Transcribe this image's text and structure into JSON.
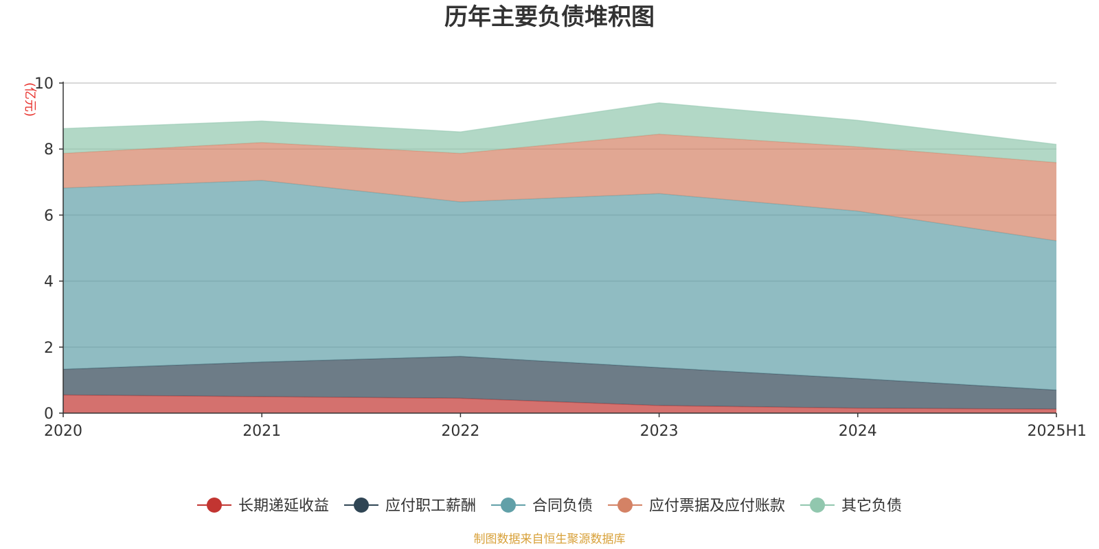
{
  "chart_data": {
    "type": "area",
    "stacked": true,
    "title": "历年主要负债堆积图",
    "unit_label": "(亿元)",
    "x": [
      "2020",
      "2021",
      "2022",
      "2023",
      "2024",
      "2025H1"
    ],
    "ylim": [
      0,
      10
    ],
    "yticks": [
      0,
      2,
      4,
      6,
      8,
      10
    ],
    "grid": true,
    "legend_position": "bottom",
    "series": [
      {
        "name": "长期递延收益",
        "color": "#c23531",
        "values": [
          0.55,
          0.5,
          0.45,
          0.23,
          0.15,
          0.12
        ]
      },
      {
        "name": "应付职工薪酬",
        "color": "#2f4554",
        "values": [
          0.78,
          1.05,
          1.27,
          1.15,
          0.9,
          0.58
        ]
      },
      {
        "name": "合同负债",
        "color": "#61a0a8",
        "values": [
          5.49,
          5.5,
          4.68,
          5.27,
          5.07,
          4.52
        ]
      },
      {
        "name": "应付票据及应付账款",
        "color": "#d48265",
        "values": [
          1.05,
          1.15,
          1.47,
          1.8,
          1.95,
          2.37
        ]
      },
      {
        "name": "其它负债",
        "color": "#91c7ae",
        "values": [
          0.75,
          0.65,
          0.65,
          0.95,
          0.8,
          0.55
        ]
      }
    ],
    "source": "制图数据来自恒生聚源数据库"
  }
}
